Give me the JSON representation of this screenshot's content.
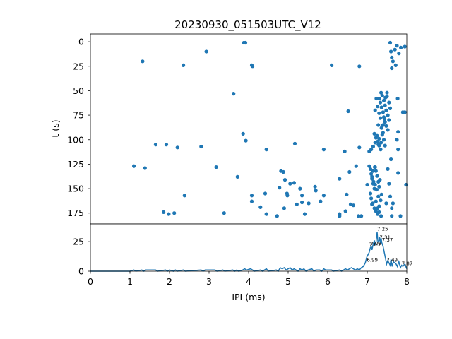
{
  "chart_data": [
    {
      "type": "scatter",
      "title": "20230930_051503UTC_V12",
      "xlabel": "",
      "ylabel": "t (s)",
      "xlim": [
        0,
        8
      ],
      "ylim": [
        186,
        -8
      ],
      "y_inverted": true,
      "yticks": [
        "0",
        "25",
        "50",
        "75",
        "100",
        "125",
        "150",
        "175"
      ],
      "color": "#1f77b4",
      "points": [
        [
          1.32,
          20
        ],
        [
          2.35,
          24
        ],
        [
          2.93,
          10
        ],
        [
          3.88,
          1
        ],
        [
          3.92,
          1
        ],
        [
          4.08,
          24
        ],
        [
          4.1,
          25
        ],
        [
          3.62,
          53
        ],
        [
          6.1,
          24
        ],
        [
          1.1,
          127
        ],
        [
          1.38,
          129
        ],
        [
          1.65,
          105
        ],
        [
          1.92,
          105
        ],
        [
          2.2,
          108
        ],
        [
          2.8,
          107
        ],
        [
          3.18,
          128
        ],
        [
          2.38,
          157
        ],
        [
          1.85,
          174
        ],
        [
          1.98,
          176
        ],
        [
          2.12,
          175
        ],
        [
          3.38,
          175
        ],
        [
          3.86,
          94
        ],
        [
          3.93,
          101
        ],
        [
          3.72,
          138
        ],
        [
          4.08,
          157
        ],
        [
          4.08,
          163
        ],
        [
          4.3,
          169
        ],
        [
          4.45,
          110
        ],
        [
          4.42,
          155
        ],
        [
          4.45,
          176
        ],
        [
          4.72,
          178
        ],
        [
          4.78,
          149
        ],
        [
          4.82,
          132
        ],
        [
          4.88,
          133
        ],
        [
          4.92,
          141
        ],
        [
          4.97,
          155
        ],
        [
          4.98,
          157
        ],
        [
          4.9,
          170
        ],
        [
          5.05,
          145
        ],
        [
          5.15,
          144
        ],
        [
          5.17,
          104
        ],
        [
          5.22,
          166
        ],
        [
          5.3,
          150
        ],
        [
          5.35,
          157
        ],
        [
          5.35,
          164
        ],
        [
          5.42,
          176
        ],
        [
          5.52,
          165
        ],
        [
          5.68,
          148
        ],
        [
          5.7,
          152
        ],
        [
          5.82,
          163
        ],
        [
          5.9,
          157
        ],
        [
          5.9,
          110
        ],
        [
          6.3,
          140
        ],
        [
          6.3,
          176
        ],
        [
          6.3,
          178
        ],
        [
          6.43,
          112
        ],
        [
          6.48,
          156
        ],
        [
          6.45,
          173
        ],
        [
          6.52,
          71
        ],
        [
          6.55,
          133
        ],
        [
          6.58,
          166
        ],
        [
          6.65,
          167
        ],
        [
          6.72,
          127
        ],
        [
          6.8,
          108
        ],
        [
          6.78,
          178
        ],
        [
          6.85,
          178
        ],
        [
          6.8,
          25
        ],
        [
          7.0,
          146
        ],
        [
          7.12,
          166
        ],
        [
          7.28,
          105
        ],
        [
          7.52,
          130
        ],
        [
          7.62,
          170
        ],
        [
          7.62,
          178
        ],
        [
          7.78,
          134
        ],
        [
          7.78,
          110
        ],
        [
          7.77,
          58
        ],
        [
          7.84,
          178
        ],
        [
          7.9,
          72
        ],
        [
          7.95,
          72
        ],
        [
          7.95,
          5
        ],
        [
          7.98,
          146
        ],
        [
          7.75,
          100
        ],
        [
          7.78,
          92
        ],
        [
          7.48,
          165
        ],
        [
          7.55,
          145
        ],
        [
          7.58,
          158
        ],
        [
          7.65,
          165
        ],
        [
          7.6,
          120
        ],
        [
          7.58,
          1
        ],
        [
          7.6,
          10
        ],
        [
          7.62,
          16
        ],
        [
          7.65,
          20
        ],
        [
          7.7,
          8
        ],
        [
          7.72,
          24
        ],
        [
          7.75,
          4
        ],
        [
          7.8,
          12
        ],
        [
          7.85,
          6
        ],
        [
          7.62,
          27
        ],
        [
          7.05,
          127
        ],
        [
          7.08,
          130
        ],
        [
          7.1,
          135
        ],
        [
          7.12,
          140
        ],
        [
          7.15,
          145
        ],
        [
          7.18,
          150
        ],
        [
          7.2,
          128
        ],
        [
          7.22,
          132
        ],
        [
          7.25,
          137
        ],
        [
          7.28,
          143
        ],
        [
          7.3,
          148
        ],
        [
          7.08,
          155
        ],
        [
          7.1,
          160
        ],
        [
          7.14,
          165
        ],
        [
          7.18,
          170
        ],
        [
          7.22,
          173
        ],
        [
          7.26,
          176
        ],
        [
          7.3,
          168
        ],
        [
          7.34,
          162
        ],
        [
          7.36,
          156
        ],
        [
          7.32,
          141
        ],
        [
          7.12,
          138
        ],
        [
          7.16,
          143
        ],
        [
          7.2,
          146
        ],
        [
          7.24,
          151
        ],
        [
          7.28,
          158
        ],
        [
          7.15,
          132
        ],
        [
          7.19,
          128
        ],
        [
          7.22,
          163
        ],
        [
          7.26,
          170
        ],
        [
          7.3,
          174
        ],
        [
          7.35,
          178
        ],
        [
          7.18,
          94
        ],
        [
          7.22,
          98
        ],
        [
          7.26,
          102
        ],
        [
          7.3,
          106
        ],
        [
          7.34,
          110
        ],
        [
          7.2,
          103
        ],
        [
          7.25,
          96
        ],
        [
          7.3,
          99
        ],
        [
          7.35,
          103
        ],
        [
          7.38,
          95
        ],
        [
          7.42,
          100
        ],
        [
          7.45,
          106
        ],
        [
          7.4,
          93
        ],
        [
          7.15,
          107
        ],
        [
          7.1,
          110
        ],
        [
          7.05,
          112
        ],
        [
          7.3,
          58
        ],
        [
          7.33,
          62
        ],
        [
          7.36,
          67
        ],
        [
          7.4,
          72
        ],
        [
          7.42,
          77
        ],
        [
          7.45,
          82
        ],
        [
          7.48,
          86
        ],
        [
          7.35,
          52
        ],
        [
          7.38,
          55
        ],
        [
          7.42,
          60
        ],
        [
          7.45,
          65
        ],
        [
          7.48,
          70
        ],
        [
          7.52,
          75
        ],
        [
          7.55,
          80
        ],
        [
          7.3,
          73
        ],
        [
          7.33,
          78
        ],
        [
          7.26,
          66
        ],
        [
          7.28,
          85
        ],
        [
          7.5,
          56
        ],
        [
          7.55,
          62
        ],
        [
          7.58,
          68
        ],
        [
          7.52,
          90
        ],
        [
          7.5,
          52
        ],
        [
          7.36,
          88
        ],
        [
          7.4,
          85
        ],
        [
          7.44,
          79
        ],
        [
          7.2,
          70
        ],
        [
          7.23,
          58
        ],
        [
          7.46,
          57
        ]
      ]
    },
    {
      "type": "line",
      "xlabel": "IPI (ms)",
      "ylabel": "",
      "xlim": [
        0,
        8
      ],
      "ylim": [
        0,
        40
      ],
      "xticks": [
        "0",
        "1",
        "2",
        "3",
        "4",
        "5",
        "6",
        "7",
        "8"
      ],
      "yticks": [
        "0",
        "25"
      ],
      "color": "#1f77b4",
      "series": [
        {
          "x": [
            0,
            1.0,
            1.1,
            1.15,
            1.3,
            1.35,
            1.4,
            1.65,
            1.7,
            1.9,
            1.95,
            2.0,
            2.1,
            2.15,
            2.2,
            2.35,
            2.4,
            2.8,
            2.85,
            2.9,
            3.15,
            3.2,
            3.35,
            3.4,
            3.6,
            3.65,
            3.7,
            3.75,
            3.85,
            3.9,
            3.95,
            4.05,
            4.1,
            4.15,
            4.3,
            4.35,
            4.4,
            4.45,
            4.5,
            4.7,
            4.75,
            4.8,
            4.85,
            4.9,
            4.95,
            5.0,
            5.05,
            5.1,
            5.15,
            5.2,
            5.25,
            5.3,
            5.35,
            5.4,
            5.45,
            5.5,
            5.6,
            5.65,
            5.7,
            5.8,
            5.85,
            5.9,
            5.95,
            6.1,
            6.15,
            6.3,
            6.35,
            6.45,
            6.5,
            6.55,
            6.6,
            6.65,
            6.7,
            6.75,
            6.8,
            6.85,
            6.9,
            6.95,
            6.99,
            7.02,
            7.05,
            7.08,
            7.1,
            7.12,
            7.15,
            7.18,
            7.2,
            7.22,
            7.25,
            7.27,
            7.3,
            7.31,
            7.33,
            7.35,
            7.37,
            7.4,
            7.43,
            7.46,
            7.49,
            7.52,
            7.55,
            7.58,
            7.6,
            7.63,
            7.66,
            7.7,
            7.73,
            7.76,
            7.8,
            7.84,
            7.87,
            7.9,
            7.95,
            8.0
          ],
          "y": [
            0,
            0,
            1,
            0,
            1,
            0,
            1,
            1,
            0,
            1,
            0,
            1,
            0,
            1,
            0,
            1,
            0,
            1,
            0,
            1,
            1,
            0,
            1,
            0,
            1,
            0,
            1,
            0,
            1,
            2,
            1,
            2,
            1,
            0,
            1,
            0,
            1,
            2,
            0,
            1,
            0,
            3,
            2,
            3,
            1,
            2,
            3,
            1,
            2,
            1,
            0,
            2,
            1,
            2,
            0,
            1,
            2,
            0,
            1,
            1,
            0,
            2,
            1,
            1,
            0,
            1,
            0,
            2,
            1,
            2,
            3,
            2,
            1,
            2,
            1,
            3,
            4,
            7,
            12,
            14,
            16,
            20,
            21,
            18,
            23,
            26,
            22,
            24,
            33,
            25,
            26,
            29,
            24,
            28,
            24,
            21,
            16,
            11,
            6,
            9,
            7,
            5,
            10,
            4,
            8,
            7,
            6,
            4,
            8,
            3,
            5,
            4,
            6,
            2
          ]
        }
      ],
      "annotations": [
        {
          "x": 7.25,
          "y": 33,
          "text": "7.25"
        },
        {
          "x": 7.31,
          "y": 26,
          "text": "7.31"
        },
        {
          "x": 7.37,
          "y": 24,
          "text": "7.37"
        },
        {
          "x": 7.08,
          "y": 21,
          "text": "7.08"
        },
        {
          "x": 7.05,
          "y": 20,
          "text": "7.05"
        },
        {
          "x": 6.99,
          "y": 7,
          "text": "6.99"
        },
        {
          "x": 7.49,
          "y": 7,
          "text": "7.49"
        },
        {
          "x": 7.87,
          "y": 4,
          "text": "7.87"
        }
      ]
    }
  ]
}
